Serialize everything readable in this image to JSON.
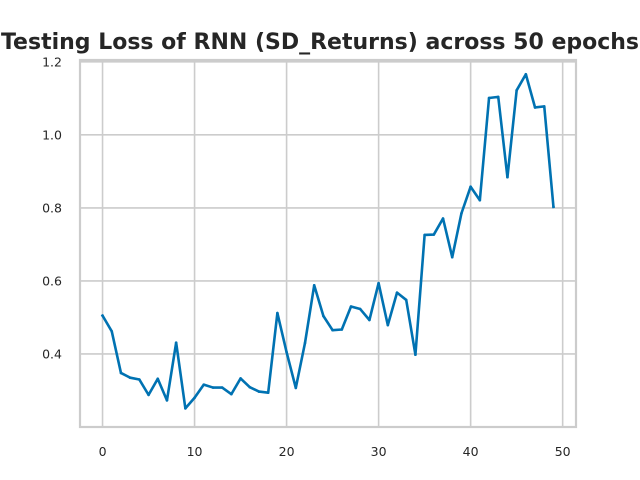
{
  "chart_data": {
    "type": "line",
    "title": "Testing Loss of RNN (SD_Returns) across 50 epochs",
    "xlabel": "",
    "ylabel": "",
    "xlim": [
      -2.45,
      51.45
    ],
    "ylim": [
      0.2,
      1.205
    ],
    "x_ticks": [
      0,
      10,
      20,
      30,
      40,
      50
    ],
    "y_ticks": [
      0.4,
      0.6,
      0.8,
      1.0,
      1.2
    ],
    "y_tick_labels": [
      "0.4",
      "0.6",
      "0.8",
      "1.0",
      "1.2"
    ],
    "grid": true,
    "legend": "none",
    "series": [
      {
        "color": "#0072b2",
        "x": [
          0,
          1,
          2,
          3,
          4,
          5,
          6,
          7,
          8,
          9,
          10,
          11,
          12,
          13,
          14,
          15,
          16,
          17,
          18,
          19,
          20,
          21,
          22,
          23,
          24,
          25,
          26,
          27,
          28,
          29,
          30,
          31,
          32,
          33,
          34,
          35,
          36,
          37,
          38,
          39,
          40,
          41,
          42,
          43,
          44,
          45,
          46,
          47,
          48,
          49
        ],
        "values": [
          0.505,
          0.462,
          0.348,
          0.335,
          0.33,
          0.288,
          0.332,
          0.273,
          0.431,
          0.251,
          0.28,
          0.316,
          0.308,
          0.308,
          0.29,
          0.333,
          0.309,
          0.297,
          0.294,
          0.512,
          0.405,
          0.307,
          0.43,
          0.588,
          0.504,
          0.465,
          0.467,
          0.53,
          0.523,
          0.493,
          0.594,
          0.479,
          0.568,
          0.548,
          0.398,
          0.726,
          0.727,
          0.771,
          0.665,
          0.785,
          0.858,
          0.821,
          1.101,
          1.104,
          0.884,
          1.122,
          1.166,
          1.075,
          1.078,
          0.803
        ]
      }
    ]
  }
}
